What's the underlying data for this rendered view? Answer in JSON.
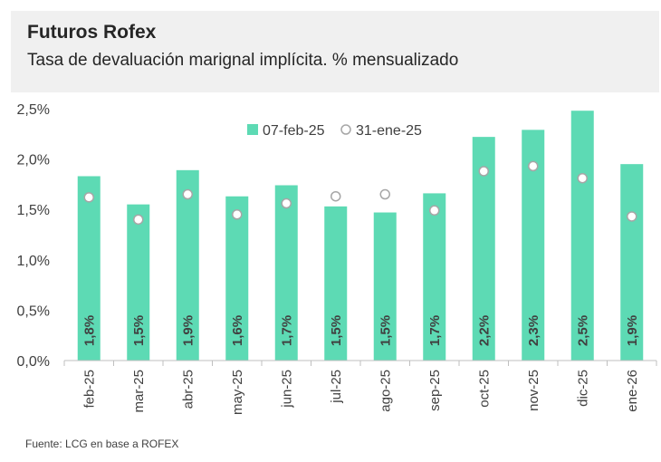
{
  "header": {
    "title": "Futuros Rofex",
    "subtitle": "Tasa de devaluación marignal implícita. % mensualizado"
  },
  "footer": {
    "source": "Fuente: LCG en base a ROFEX"
  },
  "colors": {
    "bar": "#5ddab4",
    "marker_fill": "#ffffff",
    "marker_stroke": "#a6a6a6",
    "axis": "#bfbfbf",
    "text": "#404040",
    "header_bg": "#f0f0f0"
  },
  "chart_data": {
    "type": "bar",
    "categories": [
      "feb-25",
      "mar-25",
      "abr-25",
      "may-25",
      "jun-25",
      "jul-25",
      "ago-25",
      "sep-25",
      "oct-25",
      "nov-25",
      "dic-25",
      "ene-26"
    ],
    "series": [
      {
        "name": "07-feb-25",
        "kind": "bar",
        "values": [
          1.83,
          1.55,
          1.89,
          1.63,
          1.74,
          1.53,
          1.47,
          1.66,
          2.22,
          2.29,
          2.48,
          1.95
        ],
        "labels": [
          "1,8%",
          "1,5%",
          "1,9%",
          "1,6%",
          "1,7%",
          "1,5%",
          "1,5%",
          "1,7%",
          "2,2%",
          "2,3%",
          "2,5%",
          "1,9%"
        ]
      },
      {
        "name": "31-ene-25",
        "kind": "marker",
        "values": [
          1.62,
          1.4,
          1.65,
          1.45,
          1.56,
          1.63,
          1.65,
          1.49,
          1.88,
          1.93,
          1.81,
          1.43
        ]
      }
    ],
    "yticks": [
      0,
      0.5,
      1.0,
      1.5,
      2.0,
      2.5
    ],
    "ytick_labels": [
      "0,0%",
      "0,5%",
      "1,0%",
      "1,5%",
      "2,0%",
      "2,5%"
    ],
    "ylim": [
      0,
      2.5
    ],
    "legend": "top-center",
    "grid": false
  }
}
